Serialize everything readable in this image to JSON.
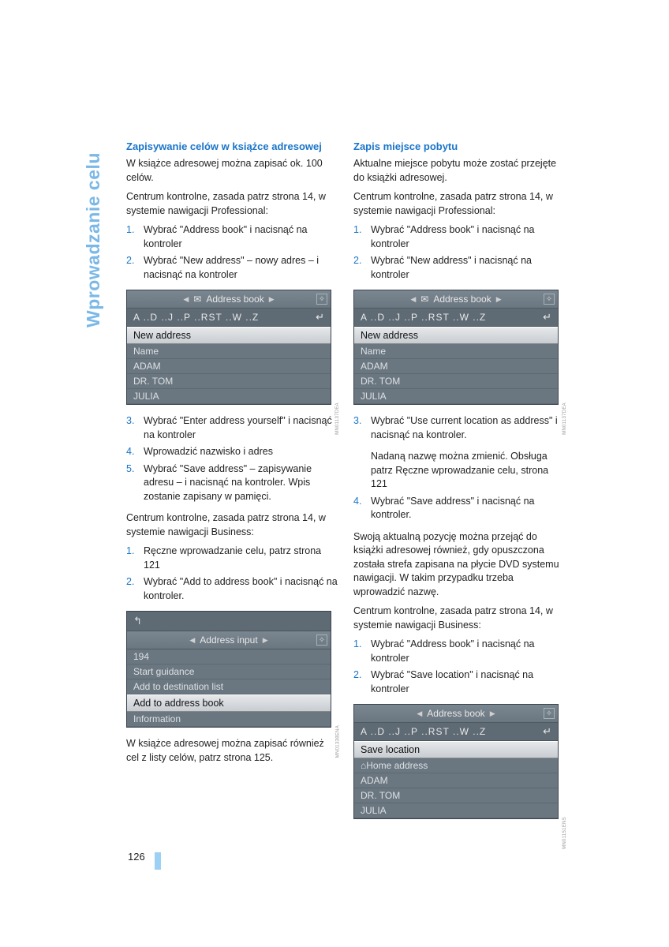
{
  "sidebarLabel": "Wprowadzanie celu",
  "pageNumber": "126",
  "left": {
    "title": "Zapisywanie celów w książce adresowej",
    "intro1": "W książce adresowej można zapisać ok. 100 celów.",
    "intro2": "Centrum kontrolne, zasada patrz strona 14, w systemie nawigacji Professional:",
    "steps1": [
      "Wybrać \"Address book\" i nacisnąć na kontroler",
      "Wybrać \"New address\" – nowy adres – i nacisnąć na kontroler"
    ],
    "screen1": {
      "header": "Address book",
      "alpha": "A ..D ..J ..P ..RST ..W ..Z",
      "enterSym": "↵",
      "highlight": "New address",
      "rows": [
        "Name",
        "ADAM",
        "DR. TOM",
        "JULIA"
      ],
      "label": "MN01137DEA"
    },
    "steps2": [
      "Wybrać \"Enter address yourself\" i nacisnąć na kontroler",
      "Wprowadzić nazwisko i adres",
      "Wybrać \"Save address\" – zapisywanie adresu – i nacisnąć na kontroler. Wpis zostanie zapisany w pamięci."
    ],
    "businessIntro": "Centrum kontrolne, zasada patrz strona 14, w systemie nawigacji Business:",
    "steps3": [
      "Ręczne wprowadzanie celu, patrz strona 121",
      "Wybrać \"Add to address book\" i nacisnąć na kontroler."
    ],
    "screen2": {
      "backSym": "⮐",
      "header": "Address input",
      "rows": [
        "194",
        "Start guidance",
        "Add to destination list"
      ],
      "highlight": "Add to address book",
      "lastRow": "Information",
      "label": "MN01338ENA"
    },
    "footer": "W książce adresowej można zapisać również cel z listy celów, patrz strona 125."
  },
  "right": {
    "title": "Zapis miejsce pobytu",
    "intro1": "Aktualne miejsce pobytu może zostać przejęte do książki adresowej.",
    "intro2": "Centrum kontrolne, zasada patrz strona 14, w systemie nawigacji Professional:",
    "steps1": [
      "Wybrać \"Address book\" i nacisnąć na kontroler",
      "Wybrać \"New address\" i nacisnąć na kontroler"
    ],
    "screen1": {
      "header": "Address book",
      "alpha": "A ..D ..J ..P ..RST ..W ..Z",
      "enterSym": "↵",
      "highlight": "New address",
      "rows": [
        "Name",
        "ADAM",
        "DR. TOM",
        "JULIA"
      ],
      "label": "MN01137DEA"
    },
    "step3": "Wybrać \"Use current location as address\" i nacisnąć na kontroler.",
    "sub3": "Nadaną nazwę można zmienić. Obsługa patrz Ręczne wprowadzanie celu, strona 121",
    "step4": "Wybrać \"Save address\" i nacisnąć na kontroler.",
    "para2": "Swoją aktualną pozycję można przejąć do książki adresowej również, gdy opuszczona została strefa zapisana na płycie DVD systemu nawigacji. W takim przypadku trzeba wprowadzić nazwę.",
    "businessIntro": "Centrum kontrolne, zasada patrz strona 14, w systemie nawigacji Business:",
    "bsteps": [
      "Wybrać \"Address book\" i nacisnąć na kontroler",
      "Wybrać \"Save location\" i nacisnąć na kontroler"
    ],
    "screen2": {
      "header": "Address book",
      "alpha": "A ..D ..J ..P ..RST ..W ..Z",
      "enterSym": "↵",
      "highlight": "Save location",
      "rows": [
        "⌂Home address",
        "ADAM",
        "DR. TOM",
        "JULIA"
      ],
      "label": "MN01151ENS"
    }
  }
}
